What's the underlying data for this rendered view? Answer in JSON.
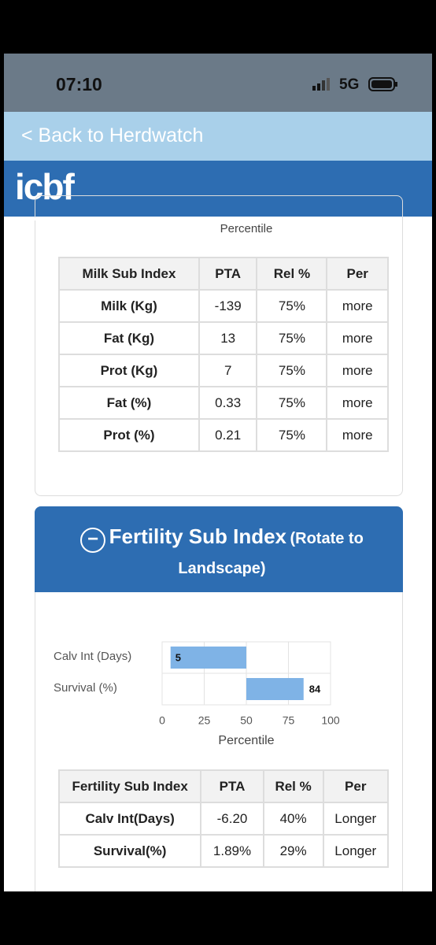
{
  "status": {
    "time": "07:10",
    "network": "5G"
  },
  "nav": {
    "back": "< Back to Herdwatch"
  },
  "header": {
    "logo": "icbf"
  },
  "milk": {
    "chart_xlabel": "Percentile",
    "table": {
      "header": [
        "Milk Sub Index",
        "PTA",
        "Rel %",
        "Per"
      ],
      "rows": [
        [
          "Milk (Kg)",
          "-139",
          "75%",
          "more"
        ],
        [
          "Fat (Kg)",
          "13",
          "75%",
          "more"
        ],
        [
          "Prot (Kg)",
          "7",
          "75%",
          "more"
        ],
        [
          "Fat (%)",
          "0.33",
          "75%",
          "more"
        ],
        [
          "Prot (%)",
          "0.21",
          "75%",
          "more"
        ]
      ]
    }
  },
  "fertility": {
    "title": "Fertility Sub Index",
    "subtitle": "(Rotate to Landscape)",
    "table": {
      "header": [
        "Fertility Sub Index",
        "PTA",
        "Rel %",
        "Per"
      ],
      "rows": [
        [
          "Calv Int(Days)",
          "-6.20",
          "40%",
          "Longer"
        ],
        [
          "Survival(%)",
          "1.89%",
          "29%",
          "Longer"
        ]
      ]
    }
  },
  "chart_data": {
    "type": "bar",
    "orientation": "horizontal",
    "base": 50,
    "categories": [
      "Calv Int (Days)",
      "Survival (%)"
    ],
    "values": [
      5,
      84
    ],
    "color": "#7fb3e6",
    "xlabel": "Percentile",
    "xlim": [
      0,
      100
    ],
    "xticks": [
      0,
      25,
      50,
      75,
      100
    ],
    "grid": true
  }
}
